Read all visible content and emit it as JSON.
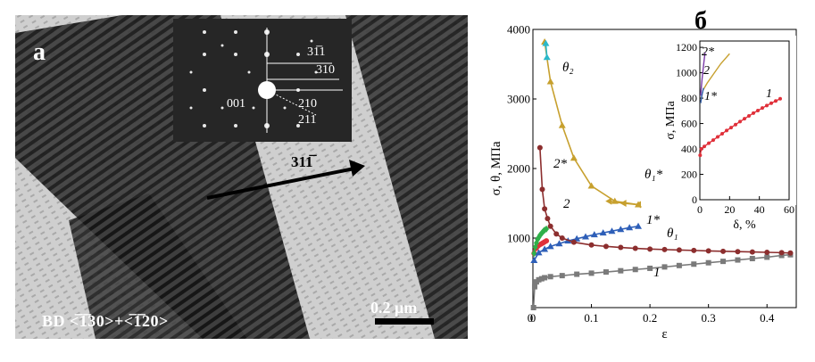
{
  "figure": {
    "panel_a": {
      "letter": "а",
      "saed_indices": [
        "31̅1",
        "310",
        "210",
        "001",
        "211"
      ],
      "zone_axis": "BD <̅1̅30>+<̅1̅20>",
      "scale_bar": "0.2 μm",
      "twin_direction": "311̅"
    },
    "panel_b": {
      "letter": "б"
    }
  },
  "chart_data": [
    {
      "type": "line",
      "title": "",
      "xlabel": "ε",
      "ylabel": "σ, θ, МПа",
      "xlim": [
        0,
        0.45
      ],
      "ylim": [
        0,
        4000
      ],
      "xticks": [
        "0",
        "0.1",
        "0.2",
        "0.3",
        "0.4"
      ],
      "yticks": [
        "1000",
        "2000",
        "3000",
        "4000"
      ],
      "series": [
        {
          "name": "1",
          "color": "#7a7a7a",
          "marker": "square",
          "x": [
            0.001,
            0.003,
            0.006,
            0.01,
            0.015,
            0.02,
            0.03,
            0.05,
            0.075,
            0.1,
            0.125,
            0.15,
            0.175,
            0.2,
            0.225,
            0.25,
            0.275,
            0.3,
            0.325,
            0.35,
            0.375,
            0.4,
            0.425,
            0.44
          ],
          "y": [
            0,
            300,
            370,
            400,
            415,
            430,
            445,
            460,
            480,
            495,
            512,
            530,
            548,
            565,
            585,
            605,
            625,
            645,
            665,
            685,
            705,
            725,
            750,
            760
          ]
        },
        {
          "name": "2",
          "color": "#e0303a",
          "marker": "circle",
          "x": [
            0.002,
            0.005,
            0.008,
            0.011,
            0.014,
            0.017,
            0.02,
            0.023
          ],
          "y": [
            780,
            850,
            880,
            900,
            915,
            930,
            945,
            960
          ]
        },
        {
          "name": "2*",
          "color": "#2fb04a",
          "marker": "diamond",
          "x": [
            0.002,
            0.004,
            0.006,
            0.008,
            0.01,
            0.012,
            0.014,
            0.016,
            0.018,
            0.02,
            0.023
          ],
          "y": [
            780,
            870,
            930,
            980,
            1010,
            1040,
            1060,
            1080,
            1100,
            1115,
            1130
          ]
        },
        {
          "name": "1*",
          "color": "#2e5fb8",
          "marker": "triangle",
          "x": [
            0.002,
            0.01,
            0.02,
            0.03,
            0.045,
            0.06,
            0.075,
            0.09,
            0.105,
            0.12,
            0.135,
            0.15,
            0.165,
            0.18
          ],
          "y": [
            680,
            790,
            840,
            880,
            920,
            960,
            990,
            1020,
            1050,
            1075,
            1100,
            1125,
            1150,
            1170
          ]
        },
        {
          "name": "θ₁",
          "color": "#8c2e2e",
          "marker": "circle",
          "x": [
            0.012,
            0.016,
            0.02,
            0.025,
            0.03,
            0.04,
            0.05,
            0.07,
            0.1,
            0.125,
            0.15,
            0.175,
            0.2,
            0.225,
            0.25,
            0.275,
            0.3,
            0.325,
            0.35,
            0.375,
            0.4,
            0.425,
            0.44
          ],
          "y": [
            2300,
            1700,
            1420,
            1280,
            1170,
            1060,
            1000,
            940,
            900,
            880,
            865,
            852,
            842,
            835,
            828,
            822,
            815,
            810,
            805,
            800,
            795,
            790,
            785
          ]
        },
        {
          "name": "θ₂",
          "color": "#c7a02e",
          "marker": "triangle",
          "x": [
            0.02,
            0.03,
            0.05,
            0.07,
            0.1,
            0.14,
            0.18
          ],
          "y": [
            3820,
            3250,
            2620,
            2150,
            1750,
            1530,
            1480
          ]
        },
        {
          "name": "θ₁*",
          "color": "#c7a02e",
          "marker": "triangle-left",
          "x": [
            0.13,
            0.155,
            0.18
          ],
          "y": [
            1530,
            1500,
            1480
          ]
        },
        {
          "name": "",
          "color": "#29b8c9",
          "marker": "triangle",
          "x": [
            0.022,
            0.024
          ],
          "y": [
            3800,
            3600
          ]
        }
      ],
      "annotations": [
        "θ₂",
        "θ₁*",
        "θ₁",
        "2*",
        "2",
        "1*",
        "1"
      ]
    },
    {
      "type": "line",
      "title": "",
      "xlabel": "δ, %",
      "ylabel": "σ, МПа",
      "xlim": [
        0,
        60
      ],
      "ylim": [
        0,
        1250
      ],
      "xticks": [
        "0",
        "20",
        "40",
        "60"
      ],
      "yticks": [
        "0",
        "200",
        "400",
        "600",
        "800",
        "1000",
        "1200"
      ],
      "series": [
        {
          "name": "1",
          "color": "#e0303a",
          "marker": "circle",
          "x": [
            0.2,
            1,
            3,
            6,
            9,
            12,
            15,
            18,
            21,
            24,
            27,
            30,
            33,
            36,
            39,
            42,
            45,
            48,
            51,
            54
          ],
          "y": [
            350,
            400,
            420,
            445,
            470,
            495,
            520,
            545,
            568,
            592,
            615,
            638,
            660,
            682,
            702,
            722,
            742,
            760,
            778,
            795
          ]
        },
        {
          "name": "2",
          "color": "#c7a02e",
          "marker": "none",
          "x": [
            0.5,
            2,
            5,
            8,
            11,
            14,
            17,
            20
          ],
          "y": [
            760,
            860,
            920,
            970,
            1020,
            1070,
            1110,
            1150
          ]
        },
        {
          "name": "2*",
          "color": "#7a3aa8",
          "marker": "none",
          "x": [
            0.5,
            1.5,
            2.5,
            3.5
          ],
          "y": [
            820,
            950,
            1060,
            1160
          ]
        },
        {
          "name": "1*",
          "color": "#2e5fb8",
          "marker": "none",
          "x": [
            0.5,
            1.5,
            2.5
          ],
          "y": [
            760,
            830,
            880
          ]
        }
      ],
      "annotations": [
        "2*",
        "2",
        "1*",
        "1"
      ]
    }
  ]
}
